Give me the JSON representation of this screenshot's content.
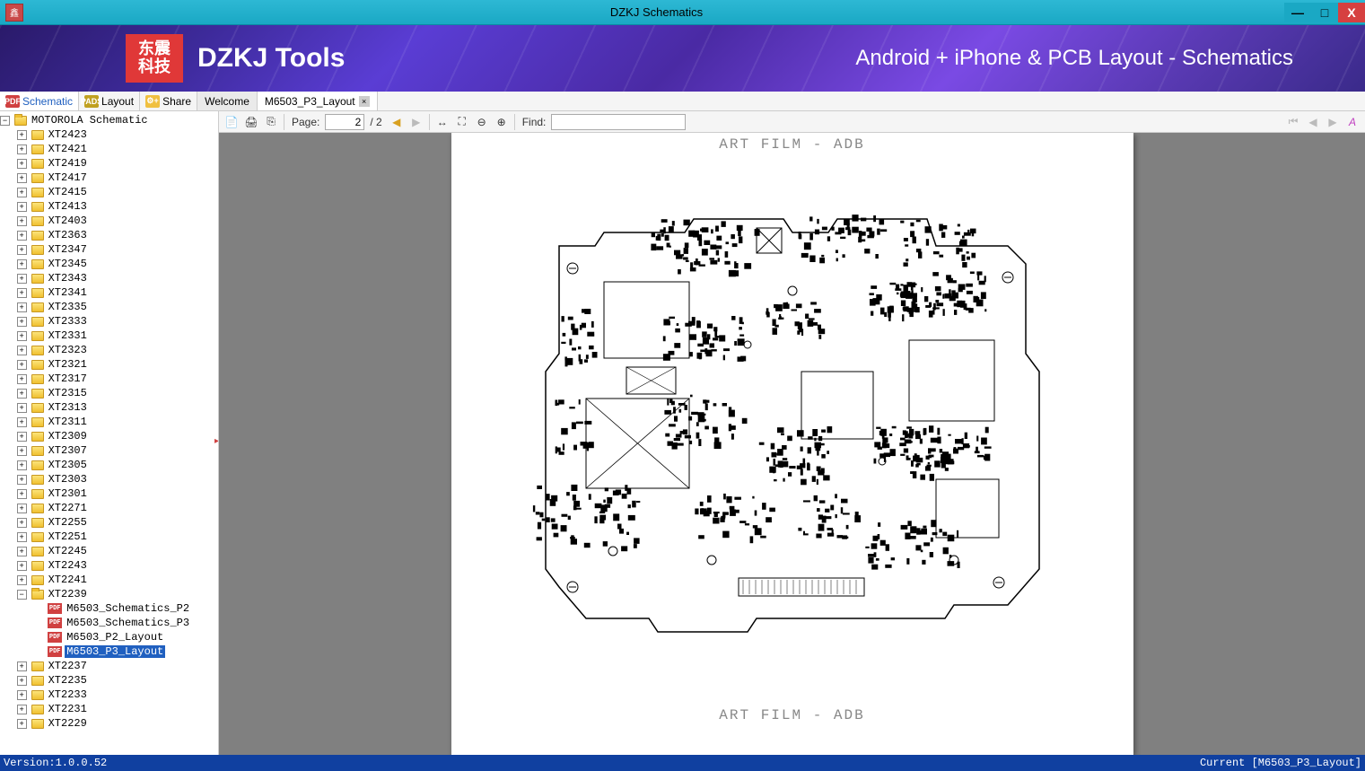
{
  "window": {
    "title": "DZKJ Schematics",
    "icon_glyph": "鑫"
  },
  "titlebar_controls": {
    "min": "—",
    "max": "□",
    "close": "X"
  },
  "banner": {
    "logo_text": "东震\n科技",
    "title": "DZKJ Tools",
    "subtitle": "Android + iPhone & PCB Layout - Schematics",
    "bg_gradient": [
      "#2a1a6a",
      "#3d2a9a",
      "#5a3dd4",
      "#4a2aa4",
      "#7a4ae4",
      "#5a3ab4",
      "#3a2a8a"
    ]
  },
  "maintabs": [
    {
      "id": "schematic",
      "label": "Schematic",
      "icon": "PDF",
      "icon_bg": "#d04040",
      "label_color": "#2060c0",
      "active": true
    },
    {
      "id": "layout",
      "label": "Layout",
      "icon": "PADS",
      "icon_bg": "#c0a020",
      "label_color": "#000"
    },
    {
      "id": "share",
      "label": "Share",
      "icon": "⚙+",
      "icon_bg": "#f0c040",
      "label_color": "#000"
    }
  ],
  "doctabs": [
    {
      "id": "welcome",
      "label": "Welcome",
      "closable": false,
      "active": false
    },
    {
      "id": "m6503",
      "label": "M6503_P3_Layout",
      "closable": true,
      "active": true
    }
  ],
  "toolbar": {
    "page_label": "Page:",
    "page_current": "2",
    "page_total": "/ 2",
    "find_label": "Find:",
    "find_value": ""
  },
  "tree": {
    "root": {
      "label": "MOTOROLA Schematic",
      "expanded": true
    },
    "items": [
      {
        "label": "XT2423"
      },
      {
        "label": "XT2421"
      },
      {
        "label": "XT2419"
      },
      {
        "label": "XT2417"
      },
      {
        "label": "XT2415"
      },
      {
        "label": "XT2413"
      },
      {
        "label": "XT2403"
      },
      {
        "label": "XT2363"
      },
      {
        "label": "XT2347"
      },
      {
        "label": "XT2345"
      },
      {
        "label": "XT2343"
      },
      {
        "label": "XT2341"
      },
      {
        "label": "XT2335"
      },
      {
        "label": "XT2333"
      },
      {
        "label": "XT2331"
      },
      {
        "label": "XT2323"
      },
      {
        "label": "XT2321"
      },
      {
        "label": "XT2317"
      },
      {
        "label": "XT2315"
      },
      {
        "label": "XT2313"
      },
      {
        "label": "XT2311"
      },
      {
        "label": "XT2309"
      },
      {
        "label": "XT2307"
      },
      {
        "label": "XT2305"
      },
      {
        "label": "XT2303"
      },
      {
        "label": "XT2301"
      },
      {
        "label": "XT2271"
      },
      {
        "label": "XT2255"
      },
      {
        "label": "XT2251"
      },
      {
        "label": "XT2245"
      },
      {
        "label": "XT2243"
      },
      {
        "label": "XT2241"
      },
      {
        "label": "XT2239",
        "expanded": true,
        "children": [
          {
            "type": "pdf",
            "label": "M6503_Schematics_P2"
          },
          {
            "type": "pdf",
            "label": "M6503_Schematics_P3"
          },
          {
            "type": "pdf",
            "label": "M6503_P2_Layout"
          },
          {
            "type": "pdf",
            "label": "M6503_P3_Layout",
            "selected": true
          }
        ]
      },
      {
        "label": "XT2237"
      },
      {
        "label": "XT2235"
      },
      {
        "label": "XT2233"
      },
      {
        "label": "XT2231"
      },
      {
        "label": "XT2229"
      }
    ]
  },
  "page_content": {
    "top_label": "ART FILM - ADB",
    "bottom_label": "ART FILM - ADB"
  },
  "statusbar": {
    "version": "Version:1.0.0.52",
    "current": "Current [M6503_P3_Layout]",
    "bg": "#1040a0"
  },
  "colors": {
    "titlebar_bg": "#1aa8c4",
    "close_bg": "#d64040",
    "logo_bg": "#e03838",
    "selection_bg": "#2060c0",
    "viewport_bg": "#808080",
    "page_bg": "#ffffff"
  }
}
